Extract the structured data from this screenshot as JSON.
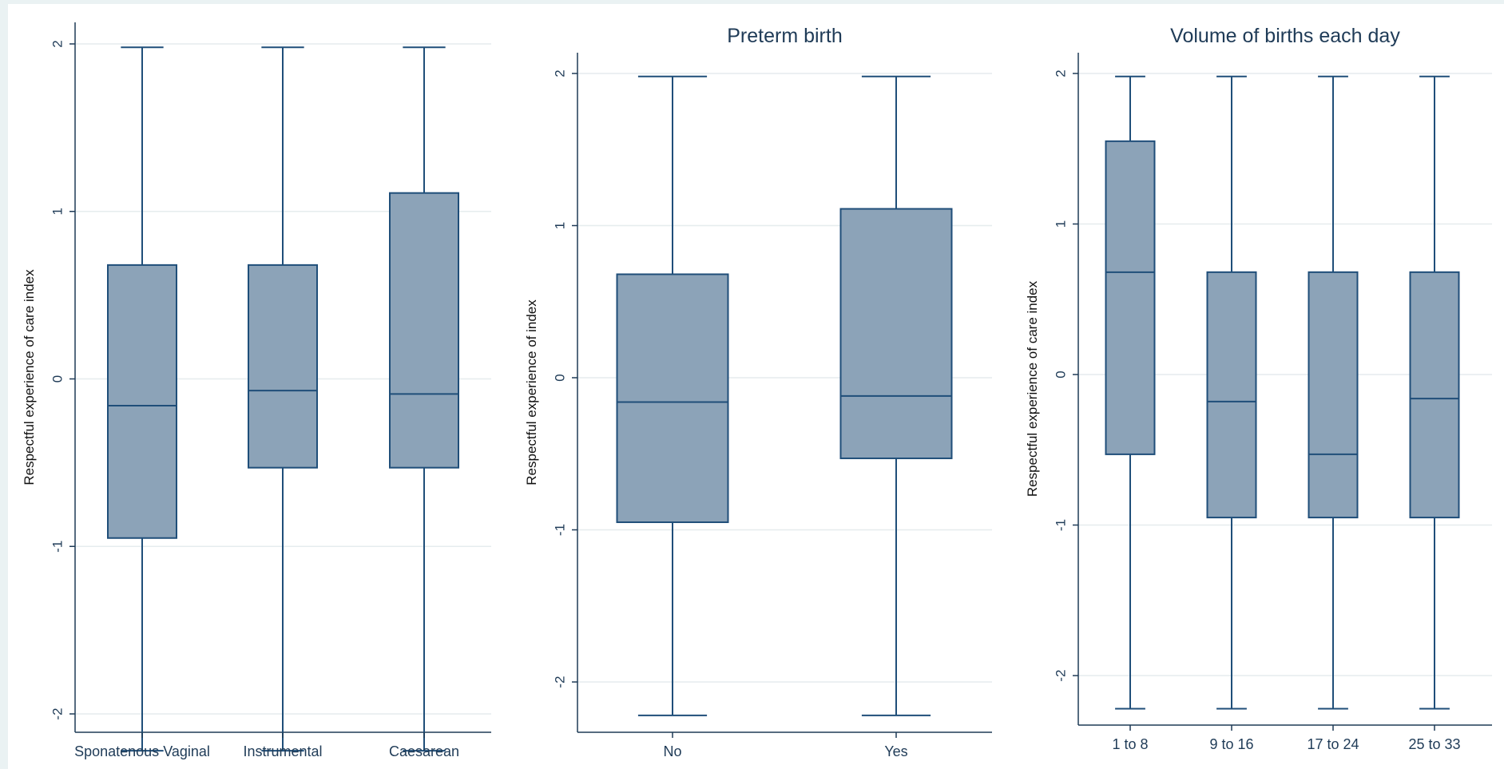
{
  "chart_data": [
    {
      "type": "box",
      "title": "",
      "xlabel": "",
      "ylabel": "Respectful experience of care index",
      "ylim": [
        -2.2,
        2.2
      ],
      "yticks": [
        2,
        1,
        0,
        -1,
        -2
      ],
      "grid": true,
      "box_color": "#8ca3b8",
      "line_color": "#1f4e79",
      "boxes": [
        {
          "category": "Sponatenous Vaginal",
          "min": -2.22,
          "q1": -0.95,
          "median": -0.16,
          "q3": 0.68,
          "max": 1.98
        },
        {
          "category": "Instrumental",
          "min": -2.22,
          "q1": -0.53,
          "median": -0.07,
          "q3": 0.68,
          "max": 1.98
        },
        {
          "category": "Caesarean",
          "min": -2.22,
          "q1": -0.53,
          "median": -0.09,
          "q3": 1.11,
          "max": 1.98
        }
      ]
    },
    {
      "type": "box",
      "title": "Preterm birth",
      "xlabel": "",
      "ylabel": "Respectful experience of index",
      "ylim": [
        -2.2,
        2.2
      ],
      "yticks": [
        2,
        1,
        0,
        -1,
        -2
      ],
      "grid": true,
      "box_color": "#8ca3b8",
      "line_color": "#1f4e79",
      "boxes": [
        {
          "category": "No",
          "min": -2.22,
          "q1": -0.95,
          "median": -0.16,
          "q3": 0.68,
          "max": 1.98
        },
        {
          "category": "Yes",
          "min": -2.22,
          "q1": -0.53,
          "median": -0.12,
          "q3": 1.11,
          "max": 1.98
        }
      ]
    },
    {
      "type": "box",
      "title": "Volume of births each day",
      "xlabel": "",
      "ylabel": "Respectful experience of care index",
      "ylim": [
        -2.2,
        2.2
      ],
      "yticks": [
        2,
        1,
        0,
        -1,
        -2
      ],
      "grid": true,
      "box_color": "#8ca3b8",
      "line_color": "#1f4e79",
      "boxes": [
        {
          "category": "1 to 8",
          "min": -2.22,
          "q1": -0.53,
          "median": 0.68,
          "q3": 1.55,
          "max": 1.98
        },
        {
          "category": "9 to 16",
          "min": -2.22,
          "q1": -0.95,
          "median": -0.18,
          "q3": 0.68,
          "max": 1.98
        },
        {
          "category": "17 to 24",
          "min": -2.22,
          "q1": -0.95,
          "median": -0.53,
          "q3": 0.68,
          "max": 1.98
        },
        {
          "category": "25 to 33",
          "min": -2.22,
          "q1": -0.95,
          "median": -0.16,
          "q3": 0.68,
          "max": 1.98
        }
      ]
    }
  ]
}
